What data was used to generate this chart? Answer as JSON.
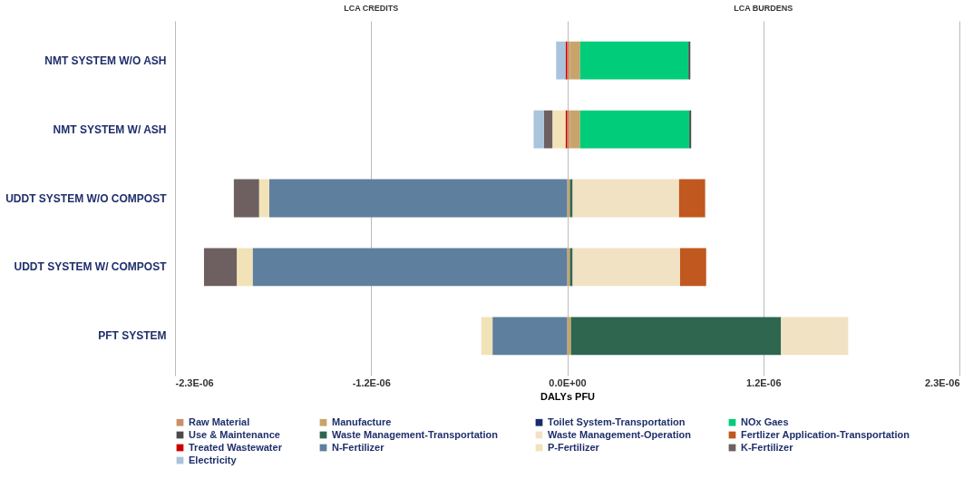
{
  "chart_data": {
    "type": "bar",
    "orientation": "horizontal",
    "stacked": true,
    "categories": [
      "NMT SYSTEM W/O ASH",
      "NMT SYSTEM W/ ASH",
      "UDDT SYSTEM W/O COMPOST",
      "UDDT SYSTEM W/ COMPOST",
      "PFT SYSTEM"
    ],
    "series": [
      {
        "name": "Raw Material",
        "color": "#c9906a",
        "values": [
          1.6e-08,
          1.6e-08,
          null,
          null,
          null
        ]
      },
      {
        "name": "Manufacture",
        "color": "#c8a46a",
        "values": [
          6e-08,
          6e-08,
          1.6e-08,
          1.6e-08,
          2.2e-08
        ]
      },
      {
        "name": "Toilet System-Transportation",
        "color": "#1a2a6c",
        "values": [
          null,
          null,
          null,
          null,
          null
        ]
      },
      {
        "name": "NOx Gaes",
        "color": "#00cc7a",
        "values": [
          6.35e-07,
          6.4e-07,
          null,
          null,
          null
        ]
      },
      {
        "name": "Use & Maintenance",
        "color": "#4a4a4a",
        "values": [
          1.1e-08,
          1.1e-08,
          null,
          null,
          null
        ]
      },
      {
        "name": "Waste Management-Transportation",
        "color": "#2e6650",
        "values": [
          null,
          null,
          1.6e-08,
          1.6e-08,
          1.232e-06
        ]
      },
      {
        "name": "Waste Management-Operation",
        "color": "#f2e2c4",
        "values": [
          null,
          null,
          6.24e-07,
          6.3e-07,
          3.94e-07
        ]
      },
      {
        "name": "Fertlizer Application-Transportation",
        "color": "#c0581f",
        "values": [
          null,
          null,
          1.53e-07,
          1.53e-07,
          null
        ]
      },
      {
        "name": "Treated Wastewater",
        "color": "#cc0000",
        "values": [
          -1e-08,
          -1e-08,
          null,
          null,
          null
        ]
      },
      {
        "name": "N-Fertilizer",
        "color": "#5e7f9e",
        "values": [
          null,
          null,
          -1.747e-06,
          -1.845e-06,
          -4.38e-07
        ]
      },
      {
        "name": "P-Fertilizer",
        "color": "#f2e2b8",
        "values": [
          null,
          -7.7e-08,
          -6e-08,
          -9.3e-08,
          -6.6e-08
        ]
      },
      {
        "name": "K-Fertilizer",
        "color": "#6e6060",
        "values": [
          null,
          -5e-08,
          -1.48e-07,
          -1.92e-07,
          null
        ]
      },
      {
        "name": "Electricity",
        "color": "#a9c4dc",
        "values": [
          -5.5e-08,
          -6e-08,
          null,
          null,
          null
        ]
      }
    ],
    "xlim": [
      -2.3e-06,
      2.3e-06
    ],
    "xticks": [
      {
        "value": -2.3e-06,
        "label": "-2.3E-06"
      },
      {
        "value": -1.15e-06,
        "label": "-1.2E-06"
      },
      {
        "value": 0,
        "label": "0.0E+00"
      },
      {
        "value": 1.15e-06,
        "label": "1.2E-06"
      },
      {
        "value": 2.3e-06,
        "label": "2.3E-06"
      }
    ],
    "xlabel": "DALYs PFU",
    "grid": "x",
    "legend": "bottom",
    "annotations": [
      "LCA CREDITS",
      "LCA BURDENS"
    ]
  }
}
